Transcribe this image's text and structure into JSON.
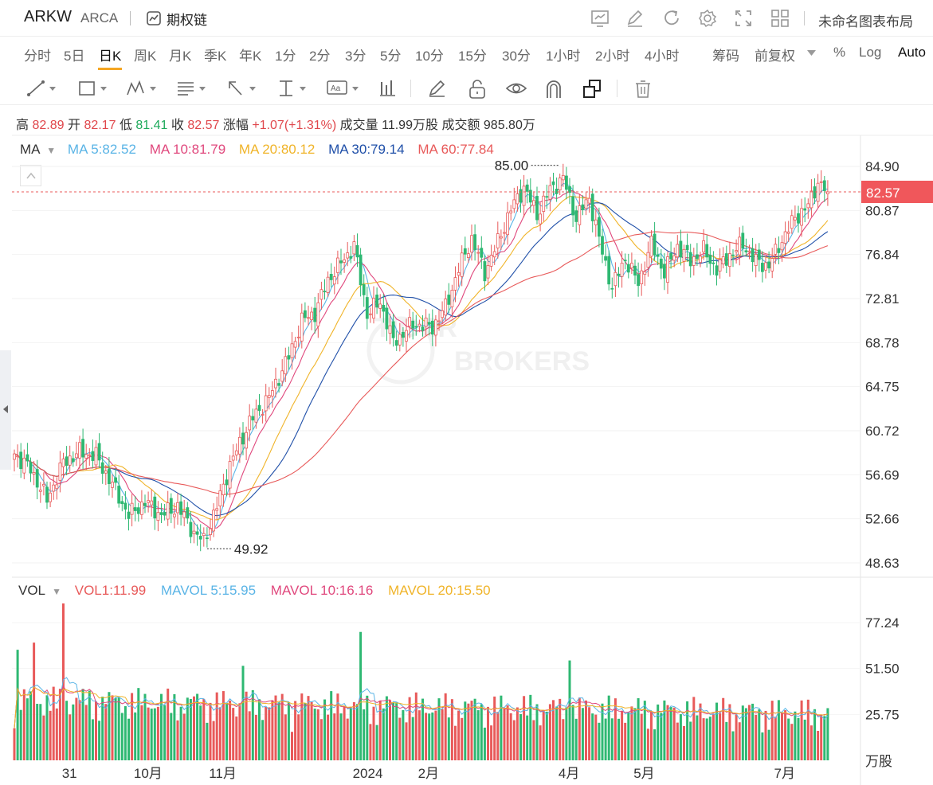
{
  "header": {
    "symbol": "ARKW",
    "exchange": "ARCA",
    "option_chain_label": "期权链",
    "layout_name": "未命名图表布局",
    "toolbar_icons": [
      "chart-settings-icon",
      "edit-icon",
      "refresh-icon",
      "gear-icon",
      "fullscreen-icon",
      "grid-layout-icon"
    ]
  },
  "periods": [
    "分时",
    "5日",
    "日K",
    "周K",
    "月K",
    "季K",
    "年K",
    "1分",
    "2分",
    "3分",
    "5分",
    "10分",
    "15分",
    "30分",
    "1小时",
    "2小时",
    "4小时"
  ],
  "active_period": "日K",
  "period_options": {
    "chips": "筹码",
    "adjust": "前复权",
    "percent": "%",
    "log": "Log",
    "auto": "Auto"
  },
  "draw_tools": [
    "line-tool-icon",
    "rectangle-tool-icon",
    "pattern-tool-icon",
    "fib-tool-icon",
    "arrow-tool-icon",
    "measure-tool-icon",
    "text-tool-icon",
    "indicator-tool-icon",
    "pencil-icon",
    "unlock-icon",
    "eye-icon",
    "magnet-icon",
    "layers-icon",
    "trash-icon"
  ],
  "quote": {
    "high_label": "高",
    "high": "82.89",
    "open_label": "开",
    "open": "82.17",
    "low_label": "低",
    "low": "81.41",
    "close_label": "收",
    "close": "82.57",
    "change_label": "涨幅",
    "change": "+1.07(+1.31%)",
    "volume_label": "成交量",
    "volume": "11.99万股",
    "amount_label": "成交额",
    "amount": "985.80万"
  },
  "ma_legend": {
    "title": "MA",
    "items": [
      {
        "label": "MA",
        "value": "5:82.52",
        "color": "#5ab4e6"
      },
      {
        "label": "MA",
        "value": "10:81.79",
        "color": "#e0487d"
      },
      {
        "label": "MA",
        "value": "20:80.12",
        "color": "#f0b429"
      },
      {
        "label": "MA",
        "value": "30:79.14",
        "color": "#1f4fa8"
      },
      {
        "label": "MA",
        "value": "60:77.84",
        "color": "#e85a5a"
      }
    ]
  },
  "vol_legend": {
    "title": "VOL",
    "items": [
      {
        "label": "VOL1:",
        "value": "11.99",
        "color": "#e85a5a"
      },
      {
        "label": "MAVOL",
        "value": "5:15.95",
        "color": "#5ab4e6"
      },
      {
        "label": "MAVOL",
        "value": "10:16.16",
        "color": "#e0487d"
      },
      {
        "label": "MAVOL",
        "value": "20:15.50",
        "color": "#f0b429"
      }
    ]
  },
  "watermark": [
    "TIGER",
    "BROKERS"
  ],
  "colors": {
    "up": "#e85a5a",
    "down": "#2eb872",
    "last_price_bg": "#f0575b"
  },
  "chart_data": {
    "type": "candlestick",
    "price_axis_ticks": [
      "84.90",
      "80.87",
      "76.84",
      "72.81",
      "68.78",
      "64.75",
      "60.72",
      "56.69",
      "52.66",
      "48.63"
    ],
    "price_ylim": [
      48.63,
      84.9
    ],
    "last_price": "82.57",
    "high_marker": "85.00",
    "low_marker": "49.92",
    "x_ticks": [
      "31",
      "10月",
      "11月",
      "2024",
      "2月",
      "4月",
      "5月",
      "7月"
    ],
    "volume_axis_ticks": [
      "77.24",
      "51.50",
      "25.75"
    ],
    "volume_unit": "万股",
    "close_path": [
      {
        "i": 0,
        "v": 58.6
      },
      {
        "i": 5,
        "v": 57.2
      },
      {
        "i": 10,
        "v": 54.4
      },
      {
        "i": 15,
        "v": 57.8
      },
      {
        "i": 20,
        "v": 58.8
      },
      {
        "i": 25,
        "v": 58.4
      },
      {
        "i": 30,
        "v": 55.8
      },
      {
        "i": 35,
        "v": 53.0
      },
      {
        "i": 40,
        "v": 54.2
      },
      {
        "i": 45,
        "v": 53.0
      },
      {
        "i": 50,
        "v": 53.8
      },
      {
        "i": 55,
        "v": 51.4
      },
      {
        "i": 58,
        "v": 50.6
      },
      {
        "i": 62,
        "v": 53.8
      },
      {
        "i": 66,
        "v": 57.6
      },
      {
        "i": 72,
        "v": 61.5
      },
      {
        "i": 78,
        "v": 63.8
      },
      {
        "i": 84,
        "v": 67.5
      },
      {
        "i": 88,
        "v": 70.8
      },
      {
        "i": 92,
        "v": 71.5
      },
      {
        "i": 96,
        "v": 74.5
      },
      {
        "i": 101,
        "v": 76.5
      },
      {
        "i": 104,
        "v": 77.6
      },
      {
        "i": 108,
        "v": 71.4
      },
      {
        "i": 112,
        "v": 72.5
      },
      {
        "i": 116,
        "v": 68.8
      },
      {
        "i": 122,
        "v": 70.5
      },
      {
        "i": 128,
        "v": 70.2
      },
      {
        "i": 132,
        "v": 72.0
      },
      {
        "i": 136,
        "v": 75.5
      },
      {
        "i": 140,
        "v": 78.3
      },
      {
        "i": 144,
        "v": 75.2
      },
      {
        "i": 148,
        "v": 78.0
      },
      {
        "i": 152,
        "v": 81.0
      },
      {
        "i": 156,
        "v": 83.0
      },
      {
        "i": 160,
        "v": 80.5
      },
      {
        "i": 164,
        "v": 82.8
      },
      {
        "i": 168,
        "v": 83.8
      },
      {
        "i": 172,
        "v": 80.2
      },
      {
        "i": 176,
        "v": 82.0
      },
      {
        "i": 180,
        "v": 77.0
      },
      {
        "i": 183,
        "v": 73.8
      },
      {
        "i": 187,
        "v": 76.5
      },
      {
        "i": 191,
        "v": 74.2
      },
      {
        "i": 195,
        "v": 77.8
      },
      {
        "i": 199,
        "v": 75.2
      },
      {
        "i": 203,
        "v": 77.6
      },
      {
        "i": 207,
        "v": 76.3
      },
      {
        "i": 211,
        "v": 77.2
      },
      {
        "i": 215,
        "v": 75.5
      },
      {
        "i": 219,
        "v": 76.8
      },
      {
        "i": 223,
        "v": 77.8
      },
      {
        "i": 227,
        "v": 76.2
      },
      {
        "i": 231,
        "v": 75.8
      },
      {
        "i": 235,
        "v": 78.2
      },
      {
        "i": 239,
        "v": 80.2
      },
      {
        "i": 243,
        "v": 81.3
      },
      {
        "i": 246,
        "v": 83.5
      },
      {
        "i": 249,
        "v": 82.57
      }
    ]
  }
}
